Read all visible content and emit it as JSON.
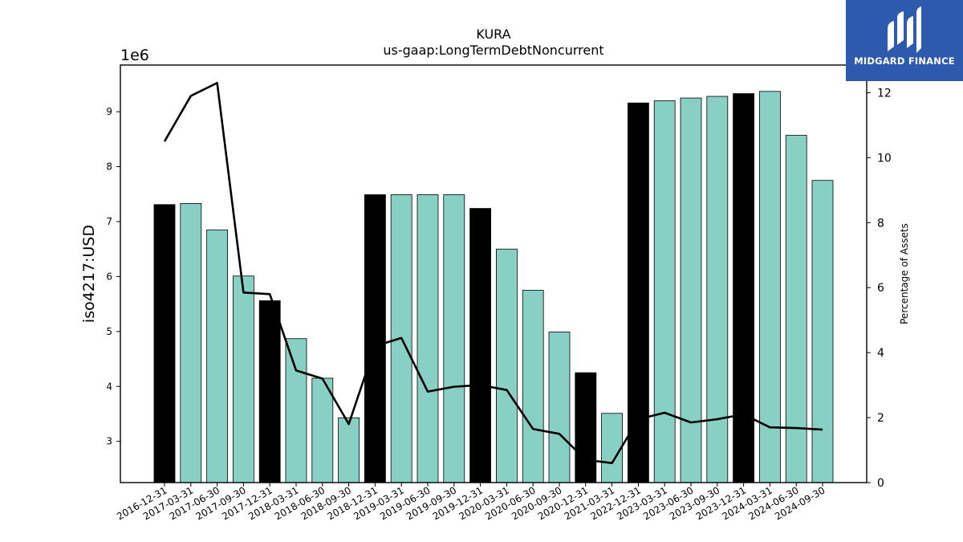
{
  "chart_data": {
    "type": "bar",
    "title": "KURA",
    "subtitle": "us-gaap:LongTermDebtNoncurrent",
    "ylabel": "iso4217:USD",
    "y_offset_label": "1e6",
    "y2label": "Percentage of Assets",
    "ylim": [
      2.25,
      9.85
    ],
    "y2lim": [
      0,
      12.85
    ],
    "yticks": [
      3,
      4,
      5,
      6,
      7,
      8,
      9
    ],
    "y2ticks": [
      0,
      2,
      4,
      6,
      8,
      10,
      12
    ],
    "categories": [
      "2016-12-31",
      "2017-03-31",
      "2017-06-30",
      "2017-09-30",
      "2017-12-31",
      "2018-03-31",
      "2018-06-30",
      "2018-09-30",
      "2018-12-31",
      "2019-03-31",
      "2019-06-30",
      "2019-09-30",
      "2019-12-31",
      "2020-03-31",
      "2020-06-30",
      "2020-09-30",
      "2020-12-31",
      "2021-03-31",
      "2022-12-31",
      "2023-03-31",
      "2023-06-30",
      "2023-09-30",
      "2023-12-31",
      "2024-03-31",
      "2024-06-30",
      "2024-09-30"
    ],
    "series": [
      {
        "kind": "bar",
        "values": [
          7.31,
          7.33,
          6.85,
          6.01,
          5.56,
          4.87,
          4.15,
          3.43,
          7.49,
          7.49,
          7.49,
          7.49,
          7.24,
          6.5,
          5.75,
          4.99,
          4.25,
          3.51,
          9.16,
          9.2,
          9.25,
          9.28,
          9.33,
          9.37,
          8.57,
          7.75
        ],
        "year_end": [
          true,
          false,
          false,
          false,
          true,
          false,
          false,
          false,
          true,
          false,
          false,
          false,
          true,
          false,
          false,
          false,
          true,
          false,
          true,
          false,
          false,
          false,
          true,
          false,
          false,
          false
        ]
      },
      {
        "kind": "line",
        "axis": "right",
        "values": [
          10.5,
          11.9,
          12.3,
          5.85,
          5.8,
          3.45,
          3.2,
          1.8,
          4.2,
          4.45,
          2.8,
          2.95,
          3.0,
          2.85,
          1.65,
          1.5,
          0.7,
          0.6,
          1.95,
          2.15,
          1.85,
          1.95,
          2.1,
          1.7,
          1.68,
          1.63
        ]
      }
    ],
    "colors": {
      "bar": "#88d0c4",
      "bar_year_end": "#000000",
      "line": "#000000"
    },
    "grid": false
  },
  "logo": {
    "name": "MIDGARD FINANCE"
  }
}
